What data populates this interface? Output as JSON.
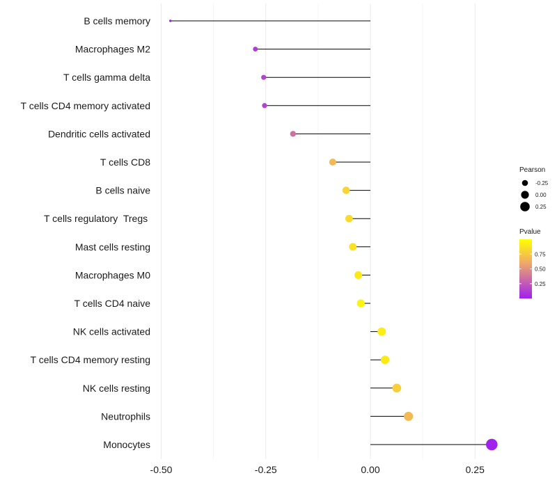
{
  "chart_data": {
    "type": "lollipop",
    "orientation": "horizontal",
    "categories": [
      "B cells memory",
      "Macrophages M2",
      "T cells gamma delta",
      "T cells CD4 memory activated",
      "Dendritic cells activated",
      "T cells CD8",
      "B cells naive",
      "T cells regulatory  Tregs ",
      "Mast cells resting",
      "Macrophages M0",
      "T cells CD4 naive",
      "NK cells activated",
      "T cells CD4 memory resting",
      "NK cells resting",
      "Neutrophils",
      "Monocytes"
    ],
    "values": [
      -0.478,
      -0.275,
      -0.255,
      -0.253,
      -0.185,
      -0.09,
      -0.058,
      -0.051,
      -0.042,
      -0.029,
      -0.023,
      0.027,
      0.035,
      0.063,
      0.091,
      0.29
    ],
    "pvalues": [
      0.002,
      0.12,
      0.15,
      0.15,
      0.35,
      0.68,
      0.8,
      0.83,
      0.86,
      0.9,
      0.95,
      0.92,
      0.9,
      0.78,
      0.68,
      0.01
    ],
    "xlim": [
      -0.5,
      0.3
    ],
    "xticks": [
      -0.5,
      -0.25,
      0.0,
      0.25
    ],
    "xtick_labels": [
      "-0.50",
      "-0.25",
      "0.00",
      "0.25"
    ],
    "grid": true,
    "legend_position": "right",
    "size_legend": {
      "title": "Pearson",
      "values": [
        -0.25,
        0.0,
        0.25
      ],
      "labels": [
        "-0.25",
        "0.00",
        "0.25"
      ]
    },
    "color_legend": {
      "title": "Pvalue",
      "range": [
        0,
        1
      ],
      "colormap": [
        "#a020f0",
        "#f0a86a",
        "#ffff00"
      ],
      "ticks": [
        0.25,
        0.5,
        0.75
      ],
      "tick_labels": [
        "0.25",
        "0.50",
        "0.75"
      ]
    }
  }
}
